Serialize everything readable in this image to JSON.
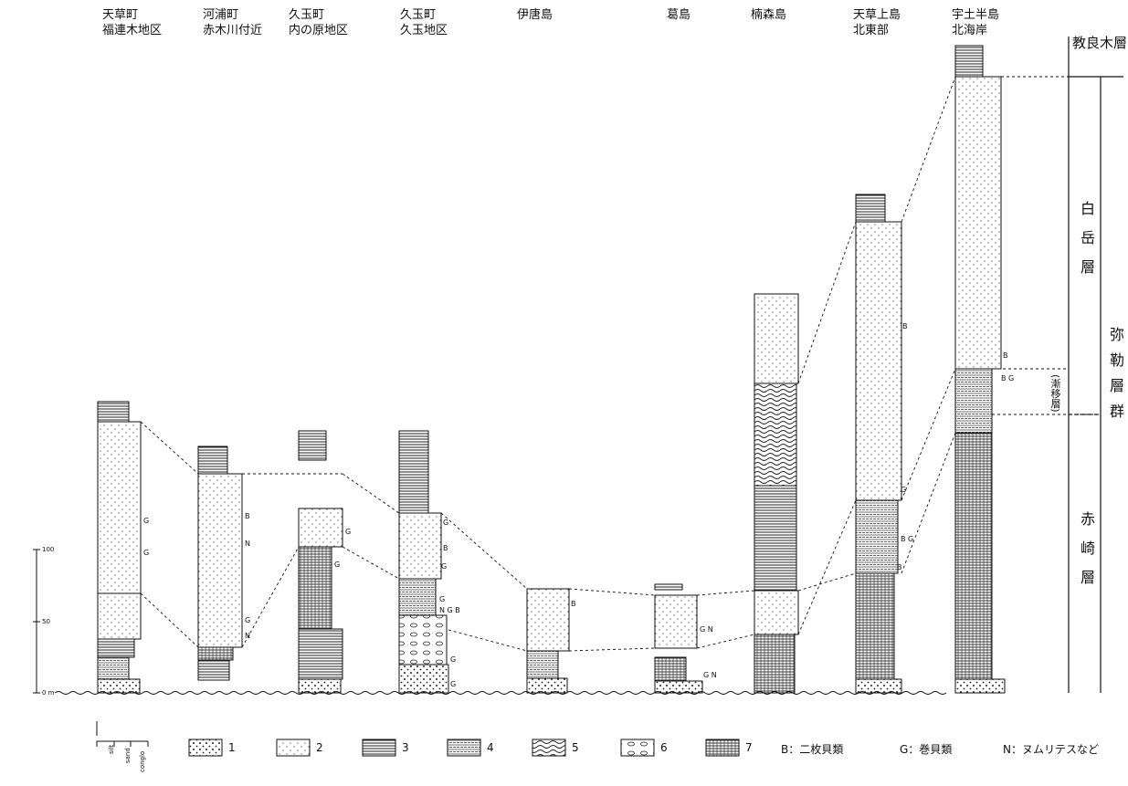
{
  "columns": [
    {
      "line1": "天草町",
      "line2": "福連木地区"
    },
    {
      "line1": "河浦町",
      "line2": "赤木川付近"
    },
    {
      "line1": "久玉町",
      "line2": "内の原地区"
    },
    {
      "line1": "久玉町",
      "line2": "久玉地区"
    },
    {
      "line1": "伊唐島",
      "line2": ""
    },
    {
      "line1": "葛島",
      "line2": ""
    },
    {
      "line1": "楠森島",
      "line2": ""
    },
    {
      "line1": "天草上島",
      "line2": "北東部"
    },
    {
      "line1": "宇土半島",
      "line2": "北海岸"
    }
  ],
  "formations": {
    "kyoragi": "教良木層",
    "shiratake": "白岳層",
    "transition": "(漸移層)",
    "akasaki": "赤崎層",
    "group": "弥勒層群"
  },
  "scale": {
    "t100": "100",
    "t50": "50",
    "t0": "0 m"
  },
  "grain": {
    "silt": "silt",
    "sand": "sand",
    "conglo": "conglo"
  },
  "legend": [
    {
      "num": "1"
    },
    {
      "num": "2"
    },
    {
      "num": "3"
    },
    {
      "num": "4"
    },
    {
      "num": "5"
    },
    {
      "num": "6"
    },
    {
      "num": "7"
    }
  ],
  "abbrev": {
    "B": "B：二枚貝類",
    "G": "G：巻貝類",
    "N": "N：ヌムリテスなど"
  },
  "fossil_marks": {
    "B": "B",
    "G": "G",
    "N": "N",
    "NGB": "N G B",
    "BG": "B G",
    "GN": "G N"
  }
}
